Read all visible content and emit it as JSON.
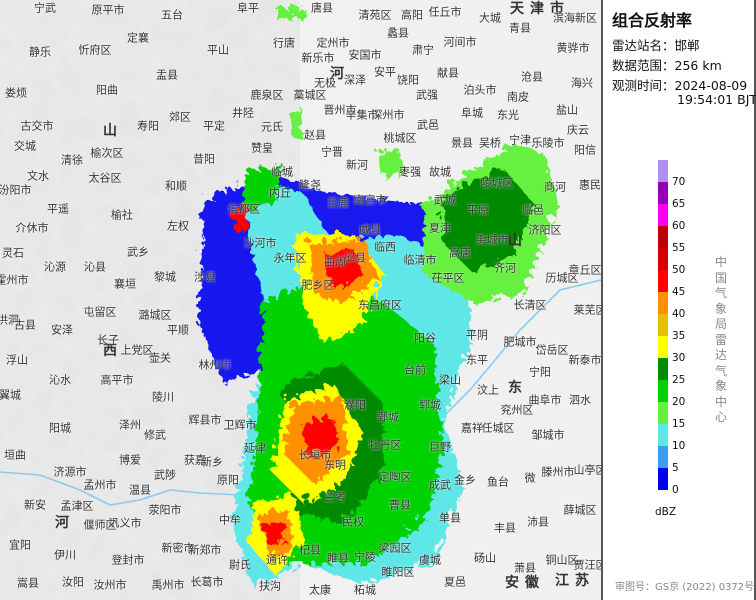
{
  "panel": {
    "title": "组合反射率",
    "station_label": "雷达站名：",
    "station": "邯郸",
    "range_label": "数据范围：",
    "range": "256 km",
    "time_label": "观测时间：",
    "date": "2024-08-09",
    "time": "19:54:01 BJT",
    "unit": "dBZ",
    "credit": "中国气象局雷达气象中心",
    "approval": "审图号：GS京 (2022) 0372号"
  },
  "legend": {
    "ticks": [
      "0",
      "5",
      "10",
      "15",
      "20",
      "25",
      "30",
      "35",
      "40",
      "45",
      "50",
      "55",
      "60",
      "65",
      "70"
    ],
    "colors": [
      "#0000f0",
      "#3c9ef0",
      "#5fe6e6",
      "#66f040",
      "#00d200",
      "#008a00",
      "#ffff00",
      "#e6c000",
      "#ff9000",
      "#ff0000",
      "#d60000",
      "#c00000",
      "#ff00f0",
      "#9600b4",
      "#b090f0"
    ]
  },
  "map": {
    "provinces": [
      "山",
      "西",
      "河",
      "河",
      "山",
      "东",
      "天津市",
      "安徽",
      "江苏"
    ],
    "places": [
      "宁武",
      "原平市",
      "五台",
      "阜平",
      "静乐",
      "忻府区",
      "定襄",
      "平山",
      "行唐",
      "盂县",
      "娄烦",
      "阳曲",
      "井陉",
      "鹿泉区",
      "郊区",
      "古交市",
      "寿阳",
      "平定",
      "元氏",
      "交城",
      "榆次区",
      "清徐",
      "昔阳",
      "赞皇",
      "文水",
      "太谷区",
      "和顺",
      "汾阳市",
      "平遥",
      "榆社",
      "介休市",
      "左权",
      "灵石",
      "武乡",
      "沁源",
      "沁县",
      "黎城",
      "涉县",
      "襄垣",
      "霍州市",
      "临城",
      "内丘",
      "信都区",
      "沙河市",
      "永年区",
      "唐县",
      "清苑区",
      "高阳",
      "任丘市",
      "大城",
      "滨海新区",
      "定州市",
      "安国市",
      "蠡县",
      "河间市",
      "青县",
      "新乐市",
      "肃宁",
      "黄骅市",
      "深泽",
      "安平",
      "饶阳",
      "献县",
      "沧县",
      "无极",
      "藁城区",
      "晋州市",
      "辛集市",
      "深州市",
      "武强",
      "泊头市",
      "南皮",
      "海兴",
      "阜城",
      "东光",
      "盐山",
      "武邑",
      "赵县",
      "桃城区",
      "景县",
      "吴桥",
      "宁津",
      "乐陵市",
      "庆云",
      "阳信",
      "宁晋",
      "新河",
      "枣强",
      "故城",
      "陵城区",
      "商河",
      "惠民",
      "隆尧",
      "南宫市",
      "巨鹿",
      "武城",
      "平原",
      "临邑",
      "威县",
      "夏津",
      "禹城市",
      "济阳区",
      "临西",
      "高唐",
      "临清市",
      "齐河",
      "章丘区",
      "历城区",
      "茌平区",
      "肥乡区",
      "邱县",
      "曲周",
      "洪洞",
      "古县",
      "安泽",
      "屯留区",
      "潞城区",
      "平顺",
      "长子",
      "上党区",
      "壶关",
      "浮山",
      "沁水",
      "高平市",
      "林州市",
      "翼城",
      "陵川",
      "辉县市",
      "阳城",
      "泽州",
      "修武",
      "卫辉市",
      "垣曲",
      "博爱",
      "获嘉",
      "新乡",
      "济源市",
      "武陟",
      "原阳",
      "延津",
      "孟州市",
      "温县",
      "新安",
      "孟津区",
      "荥阳市",
      "巩义市",
      "中牟",
      "偃师区",
      "宜阳",
      "伊川",
      "新密市",
      "新郑市",
      "登封市",
      "尉氏",
      "嵩县",
      "汝阳",
      "汝州市",
      "禹州市",
      "长葛市",
      "扶沟",
      "通许",
      "东昌府区",
      "长清区",
      "莱芜区",
      "阳谷",
      "平阴",
      "肥城市",
      "岱岳区",
      "新泰市",
      "东平",
      "台前",
      "梁山",
      "汶上",
      "宁阳",
      "曲阜市",
      "泗水",
      "兖州区",
      "郓城",
      "鄄城",
      "嘉祥",
      "任城区",
      "邹城市",
      "濮阳",
      "牡丹区",
      "巨野",
      "长垣市",
      "东明",
      "滕州市",
      "山亭区",
      "金乡",
      "鱼台",
      "微",
      "定陶区",
      "成武",
      "曹县",
      "单县",
      "兰考",
      "薛城区",
      "民权",
      "丰县",
      "沛县",
      "杞县",
      "睢县",
      "宁陵",
      "梁园区",
      "虞城",
      "砀山",
      "萧县",
      "铜山区",
      "贾汪区",
      "睢阳区",
      "夏邑",
      "太康",
      "柘城"
    ]
  }
}
